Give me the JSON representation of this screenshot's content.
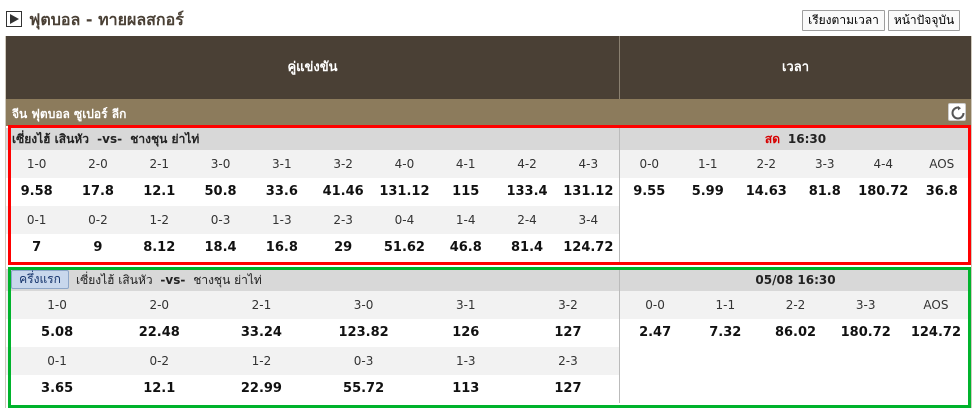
{
  "topbar": {
    "title": "ฟุตบอล - ทายผลสกอร์",
    "btn_sort_time": "เรียงตามเวลา",
    "btn_current_page": "หน้าปัจจุบัน"
  },
  "table": {
    "col_match": "คู่แข่งขัน",
    "col_time": "เวลา"
  },
  "league": {
    "name": "จีน ฟุตบอล ซูเปอร์ ลีก"
  },
  "match1": {
    "home": "เซี่ยงไฮ้ เสินหัว",
    "vs": "-vs-",
    "away": "ชางชุน ย่าไท่",
    "live_label": "สด",
    "time": "16:30",
    "row1_labels": [
      "1-0",
      "2-0",
      "2-1",
      "3-0",
      "3-1",
      "3-2",
      "4-0",
      "4-1",
      "4-2",
      "4-3"
    ],
    "row1_values": [
      "9.58",
      "17.8",
      "12.1",
      "50.8",
      "33.6",
      "41.46",
      "131.12",
      "115",
      "133.4",
      "131.12"
    ],
    "row2_labels": [
      "0-1",
      "0-2",
      "1-2",
      "0-3",
      "1-3",
      "2-3",
      "0-4",
      "1-4",
      "2-4",
      "3-4"
    ],
    "row2_values": [
      "7",
      "9",
      "8.12",
      "18.4",
      "16.8",
      "29",
      "51.62",
      "46.8",
      "81.4",
      "124.72"
    ],
    "right_labels": [
      "0-0",
      "1-1",
      "2-2",
      "3-3",
      "4-4",
      "AOS"
    ],
    "right_values": [
      "9.55",
      "5.99",
      "14.63",
      "81.8",
      "180.72",
      "36.8"
    ]
  },
  "match2": {
    "half_label": "ครึ่งแรก",
    "home": "เซี่ยงไฮ้ เสินหัว",
    "vs": "-vs-",
    "away": "ชางชุน ย่าไท่",
    "datetime": "05/08 16:30",
    "row1_labels": [
      "1-0",
      "2-0",
      "2-1",
      "3-0",
      "3-1",
      "3-2"
    ],
    "row1_values": [
      "5.08",
      "22.48",
      "33.24",
      "123.82",
      "126",
      "127"
    ],
    "row2_labels": [
      "0-1",
      "0-2",
      "1-2",
      "0-3",
      "1-3",
      "2-3"
    ],
    "row2_values": [
      "3.65",
      "12.1",
      "22.99",
      "55.72",
      "113",
      "127"
    ],
    "right_labels": [
      "0-0",
      "1-1",
      "2-2",
      "3-3",
      "AOS"
    ],
    "right_values": [
      "2.47",
      "7.32",
      "86.02",
      "180.72",
      "124.72"
    ]
  },
  "colors": {
    "header_bg": "#4a4035",
    "league_bg": "#8c7b5c",
    "highlight_red": "#ff0000",
    "highlight_green": "#00b32c",
    "live_red": "#d60000"
  }
}
